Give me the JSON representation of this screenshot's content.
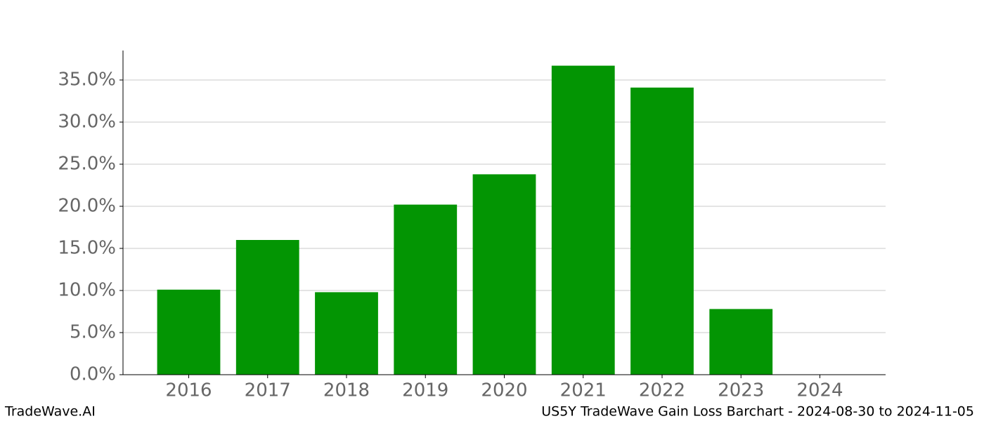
{
  "chart_data": {
    "type": "bar",
    "title": "US5Y TradeWave Gain Loss Barchart - 2024-08-30 to 2024-11-05",
    "source": "TradeWave.AI",
    "categories": [
      "2016",
      "2017",
      "2018",
      "2019",
      "2020",
      "2021",
      "2022",
      "2023",
      "2024"
    ],
    "values": [
      10.1,
      16.0,
      9.8,
      20.2,
      23.8,
      36.7,
      34.1,
      7.8,
      0
    ],
    "color": "#039503",
    "ylim": [
      0,
      38.5
    ],
    "yticks": [
      {
        "value": 0,
        "label": "0.0%"
      },
      {
        "value": 5,
        "label": "5.0%"
      },
      {
        "value": 10,
        "label": "10.0%"
      },
      {
        "value": 15,
        "label": "15.0%"
      },
      {
        "value": 20,
        "label": "20.0%"
      },
      {
        "value": 25,
        "label": "25.0%"
      },
      {
        "value": 30,
        "label": "30.0%"
      },
      {
        "value": 35,
        "label": "35.0%"
      }
    ],
    "grid": true
  }
}
